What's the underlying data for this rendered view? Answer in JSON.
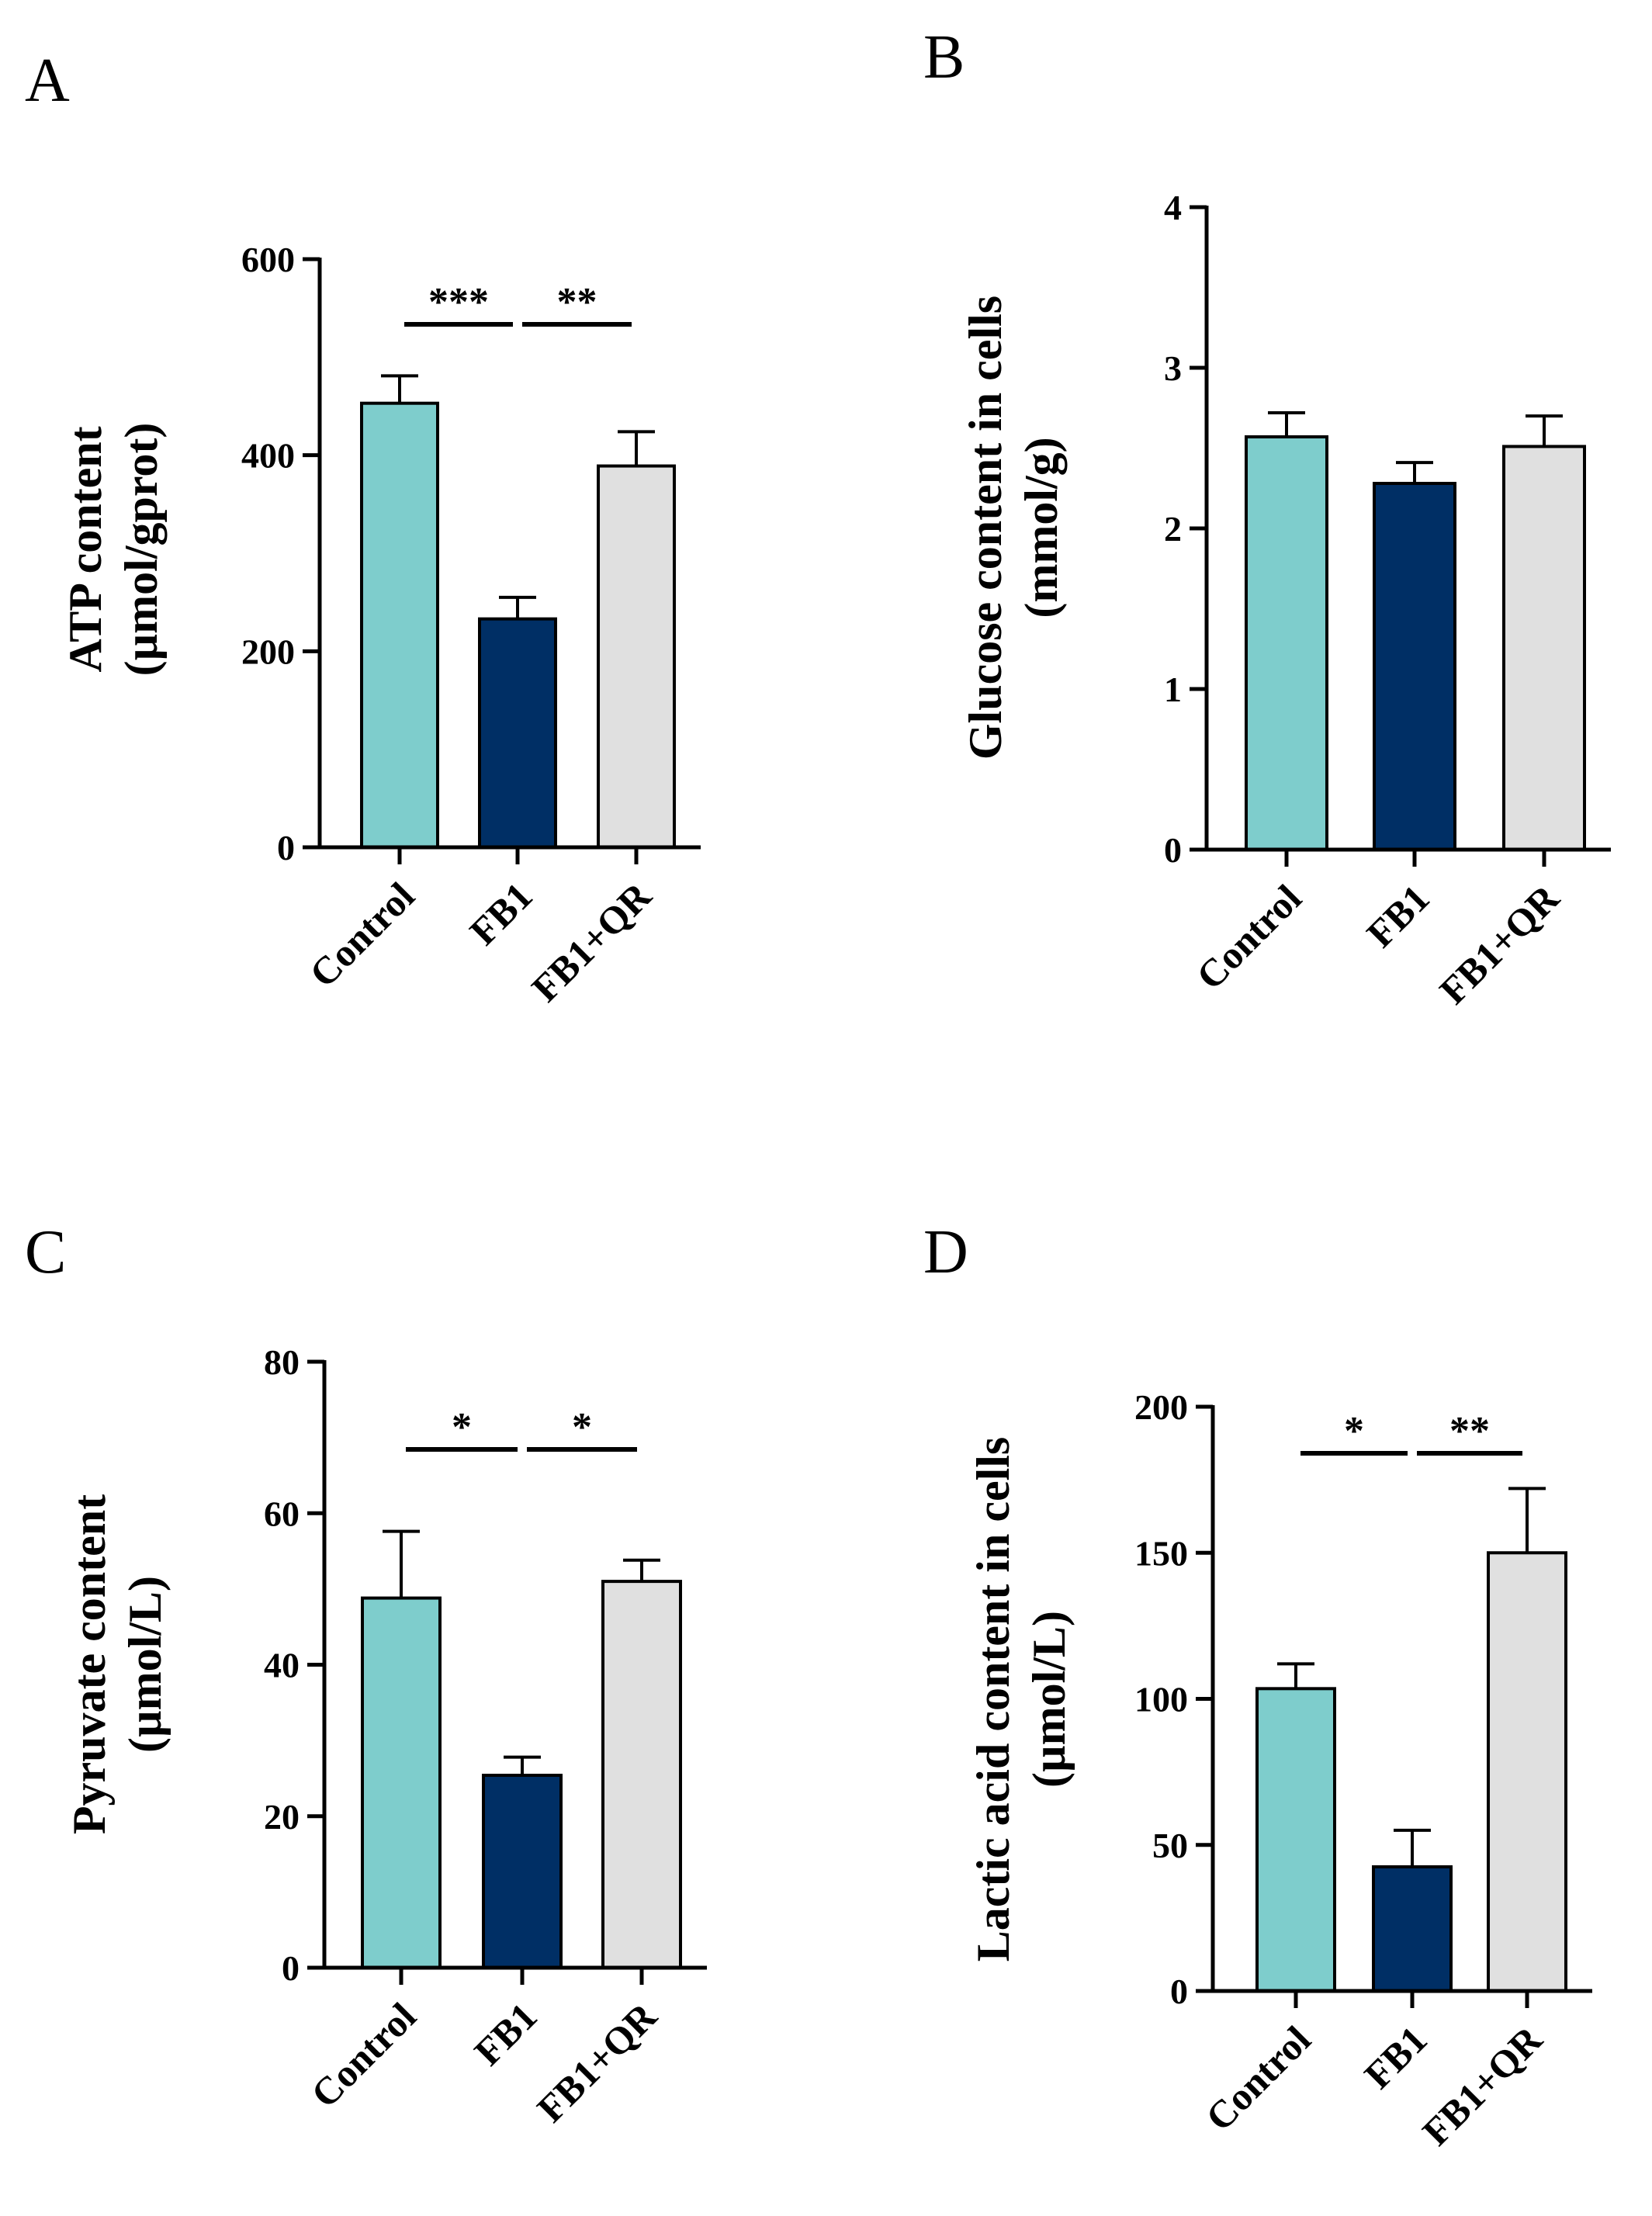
{
  "colors": {
    "control": "#7ecdcc",
    "fb1": "#002f65",
    "fb1_qr": "#e0e0e0",
    "axis": "#000000"
  },
  "chart_data": [
    {
      "panel": "A",
      "type": "bar",
      "categories": [
        "Control",
        "FB1",
        "FB1+QR"
      ],
      "values": [
        453,
        233,
        389
      ],
      "errors": [
        28,
        22,
        35
      ],
      "ylabel_lines": [
        "ATP content",
        "(µmol/gprot)"
      ],
      "ylim": [
        0,
        600
      ],
      "yticks": [
        0,
        200,
        400,
        600
      ],
      "tick_labels": [
        "0",
        "200",
        "400",
        "600"
      ],
      "significance": [
        {
          "from": 0,
          "to": 1,
          "label": "***"
        },
        {
          "from": 1,
          "to": 2,
          "label": "**"
        }
      ]
    },
    {
      "panel": "B",
      "type": "bar",
      "categories": [
        "Control",
        "FB1",
        "FB1+QR"
      ],
      "values": [
        2.57,
        2.28,
        2.51
      ],
      "errors": [
        0.15,
        0.13,
        0.19
      ],
      "ylabel_lines": [
        "Glucose content in cells",
        "(mmol/g)"
      ],
      "ylim": [
        0,
        4
      ],
      "yticks": [
        0,
        1,
        2,
        3,
        4
      ],
      "tick_labels": [
        "0",
        "1",
        "2",
        "3",
        "4"
      ],
      "significance": []
    },
    {
      "panel": "C",
      "type": "bar",
      "categories": [
        "Control",
        "FB1",
        "FB1+QR"
      ],
      "values": [
        48.8,
        25.4,
        51
      ],
      "errors": [
        8.8,
        2.4,
        2.8
      ],
      "ylabel_lines": [
        "Pyruvate content",
        "(µmol/L)"
      ],
      "ylim": [
        0,
        80
      ],
      "yticks": [
        0,
        20,
        40,
        60,
        80
      ],
      "tick_labels": [
        "0",
        "20",
        "40",
        "60",
        "80"
      ],
      "significance": [
        {
          "from": 0,
          "to": 1,
          "label": "*"
        },
        {
          "from": 1,
          "to": 2,
          "label": "*"
        }
      ]
    },
    {
      "panel": "D",
      "type": "bar",
      "categories": [
        "Control",
        "FB1",
        "FB1+QR"
      ],
      "values": [
        103.5,
        42.5,
        150
      ],
      "errors": [
        8.5,
        12.5,
        22
      ],
      "ylabel_lines": [
        "Lactic acid content in cells",
        "(µmol/L)"
      ],
      "ylim": [
        0,
        200
      ],
      "yticks": [
        0,
        50,
        100,
        150,
        200
      ],
      "tick_labels": [
        "0",
        "50",
        "100",
        "150",
        "200"
      ],
      "significance": [
        {
          "from": 0,
          "to": 1,
          "label": "*"
        },
        {
          "from": 1,
          "to": 2,
          "label": "**"
        }
      ]
    }
  ]
}
